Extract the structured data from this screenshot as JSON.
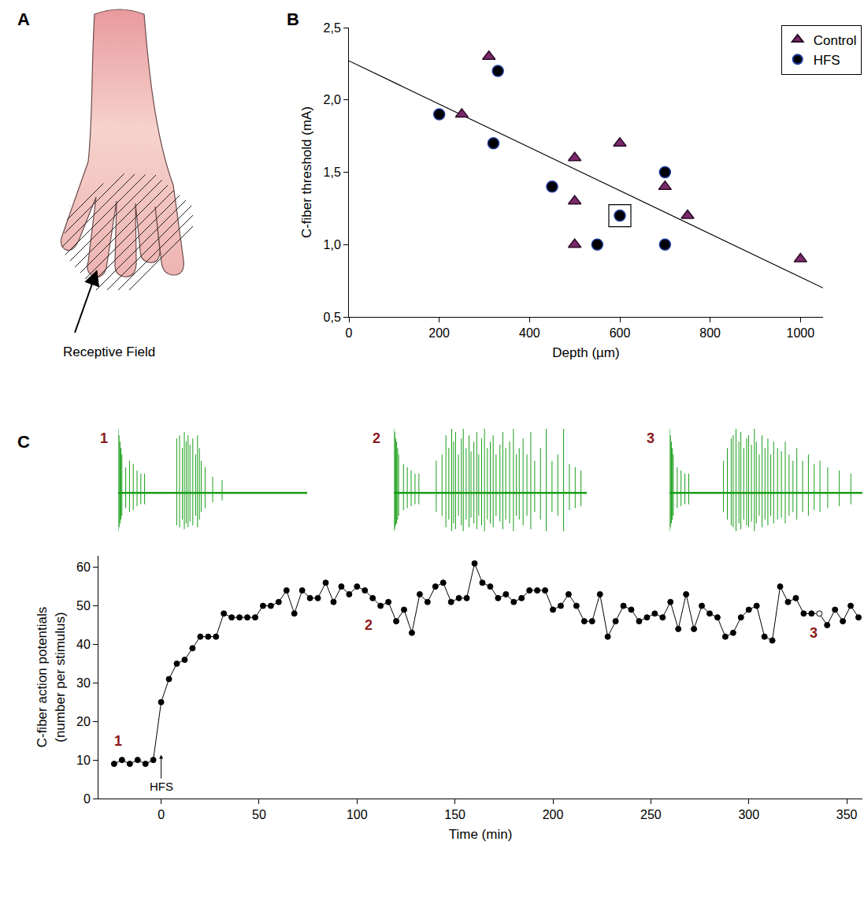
{
  "diagram": {
    "letter": "A",
    "label": "Receptive Field"
  },
  "chart_data": [
    {
      "panel": "B",
      "type": "scatter",
      "x_label": "Depth (µm)",
      "y_label": "C-fiber threshold (mA)",
      "series": [
        {
          "name": "Control",
          "marker": "triangle-up",
          "color": "#7a2a6c",
          "x": [
            250,
            310,
            500,
            500,
            500,
            600,
            700,
            750,
            1000
          ],
          "values": [
            1.9,
            2.3,
            1.6,
            1.3,
            1.0,
            1.7,
            1.4,
            1.2,
            0.9
          ]
        },
        {
          "name": "HFS",
          "marker": "circle",
          "color": "#000000",
          "x": [
            200,
            330,
            320,
            450,
            550,
            600,
            700,
            700
          ],
          "values": [
            1.9,
            2.2,
            1.7,
            1.4,
            1.0,
            1.2,
            1.5,
            1.0
          ]
        }
      ],
      "fit": {
        "x": [
          0,
          1050
        ],
        "values": [
          2.27,
          0.7
        ]
      },
      "boxed_point": {
        "x": 600,
        "value": 1.2
      },
      "xlim": [
        0,
        1050
      ],
      "xticks": [
        0,
        200,
        400,
        600,
        800,
        1000
      ],
      "ylim": [
        0.5,
        2.5
      ],
      "yticks": [
        {
          "value": 0.5,
          "label": "0,5"
        },
        {
          "value": 1.0,
          "label": "1,0"
        },
        {
          "value": 1.5,
          "label": "1,5"
        },
        {
          "value": 2.0,
          "label": "2,0"
        },
        {
          "value": 2.5,
          "label": "2,5"
        }
      ],
      "legend": "top right",
      "grid": false
    },
    {
      "panel": "C",
      "type": "spikes",
      "title": "1",
      "color": "#1a9e1a",
      "times": [
        0,
        0.5,
        1,
        1.5,
        2,
        4,
        6,
        8,
        10,
        12,
        14,
        31,
        32.5,
        34,
        35,
        36,
        37,
        38,
        39.5,
        41,
        42,
        43,
        44,
        46,
        50,
        55
      ],
      "amplitudes": [
        1,
        0.9,
        0.8,
        0.7,
        0.6,
        0.4,
        0.5,
        0.45,
        0.35,
        0.3,
        0.3,
        0.85,
        0.9,
        0.7,
        0.95,
        0.8,
        0.9,
        0.75,
        0.85,
        0.6,
        0.9,
        0.7,
        0.5,
        0.4,
        0.25,
        0.2
      ],
      "xlim": [
        0,
        100
      ],
      "ylim": [
        -0.8,
        1.05
      ],
      "tick_labels": false
    },
    {
      "panel": "C",
      "type": "spikes",
      "title": "2",
      "color": "#1a9e1a",
      "times": [
        0,
        0.5,
        1,
        1.5,
        2,
        2.5,
        5,
        7,
        9,
        11,
        13,
        22,
        25,
        27,
        28.5,
        30,
        31,
        32,
        33.5,
        35,
        36,
        37.5,
        39,
        40,
        41.5,
        43,
        44,
        45.5,
        47,
        48.5,
        50,
        51.5,
        53,
        55,
        56.5,
        58,
        60,
        62,
        63.5,
        65,
        67,
        69,
        71,
        73,
        76,
        79,
        82,
        85,
        88,
        91,
        94,
        97
      ],
      "amplitudes": [
        1,
        0.95,
        0.85,
        0.8,
        0.7,
        0.6,
        0.45,
        0.4,
        0.35,
        0.3,
        0.3,
        0.5,
        0.6,
        0.9,
        0.7,
        1.0,
        0.8,
        0.95,
        0.6,
        0.85,
        1.0,
        0.7,
        0.9,
        0.65,
        0.8,
        0.95,
        0.6,
        0.85,
        1.0,
        0.7,
        0.8,
        0.9,
        0.6,
        0.75,
        0.95,
        0.7,
        0.8,
        1.0,
        0.6,
        0.7,
        0.85,
        0.6,
        0.95,
        0.5,
        0.7,
        1.0,
        0.5,
        0.6,
        1.0,
        0.45,
        0.4,
        0.35
      ],
      "xlim": [
        0,
        100
      ],
      "ylim": [
        -0.8,
        1.05
      ],
      "tick_labels": false
    },
    {
      "panel": "C",
      "type": "spikes",
      "title": "3",
      "color": "#1a9e1a",
      "times": [
        0,
        0.5,
        1,
        1.5,
        2,
        4,
        6,
        8,
        10,
        28,
        30,
        32,
        33,
        34.5,
        36,
        37,
        38.5,
        40,
        41,
        42.5,
        44,
        45,
        46.5,
        48,
        49.5,
        51,
        52.5,
        54,
        56,
        58,
        60,
        62,
        64,
        66,
        69,
        72,
        75,
        78,
        82,
        88,
        94
      ],
      "amplitudes": [
        1,
        0.9,
        0.8,
        0.7,
        0.6,
        0.4,
        0.35,
        0.3,
        0.3,
        0.5,
        0.7,
        0.85,
        0.9,
        1.0,
        0.8,
        0.95,
        0.7,
        0.85,
        0.9,
        0.75,
        1.0,
        0.8,
        0.6,
        0.9,
        0.7,
        0.85,
        0.6,
        0.8,
        0.7,
        0.65,
        0.8,
        0.6,
        0.5,
        0.7,
        0.5,
        0.6,
        0.45,
        0.5,
        0.4,
        0.35,
        0.3
      ],
      "xlim": [
        0,
        100
      ],
      "ylim": [
        -0.8,
        1.05
      ],
      "tick_labels": false
    },
    {
      "panel": "C",
      "type": "line",
      "x_label": "Time (min)",
      "y_label": [
        "C-fiber action potentials",
        "(number per stimulus)"
      ],
      "x": [
        -24,
        -20,
        -16,
        -12,
        -8,
        -4,
        0,
        4,
        8,
        12,
        16,
        20,
        24,
        28,
        32,
        36,
        40,
        44,
        48,
        52,
        56,
        60,
        64,
        68,
        72,
        76,
        80,
        84,
        88,
        92,
        96,
        100,
        104,
        108,
        112,
        116,
        120,
        124,
        128,
        132,
        136,
        140,
        144,
        148,
        152,
        156,
        160,
        164,
        168,
        172,
        176,
        180,
        184,
        188,
        192,
        196,
        200,
        204,
        208,
        212,
        216,
        220,
        224,
        228,
        232,
        236,
        240,
        244,
        248,
        252,
        256,
        260,
        264,
        268,
        272,
        276,
        280,
        284,
        288,
        292,
        296,
        300,
        304,
        308,
        312,
        316,
        320,
        324,
        328,
        332,
        336,
        340,
        344,
        348,
        352,
        356
      ],
      "values": [
        9,
        10,
        9,
        10,
        9,
        10,
        25,
        31,
        35,
        36,
        39,
        42,
        42,
        42,
        48,
        47,
        47,
        47,
        47,
        50,
        50,
        51,
        54,
        48,
        54,
        52,
        52,
        56,
        51,
        55,
        53,
        55,
        54,
        52,
        50,
        51,
        46,
        49,
        43,
        53,
        51,
        55,
        56,
        51,
        52,
        52,
        61,
        56,
        55,
        52,
        53,
        51,
        52,
        54,
        54,
        54,
        49,
        50,
        53,
        50,
        46,
        46,
        53,
        42,
        46,
        50,
        49,
        46,
        47,
        48,
        47,
        51,
        44,
        53,
        44,
        50,
        48,
        47,
        42,
        43,
        47,
        49,
        50,
        42,
        41,
        55,
        51,
        52,
        48,
        48,
        48,
        45,
        49,
        46,
        50,
        47
      ],
      "color": "#000000",
      "marker": "circle",
      "open_x": [
        336
      ],
      "annotations": [
        {
          "text": "1",
          "x": -22,
          "y": 15
        },
        {
          "text": "2",
          "x": 106,
          "y": 45
        },
        {
          "text": "3",
          "x": 333,
          "y": 43
        }
      ],
      "event": {
        "text": "HFS",
        "x": 0
      },
      "xlim": [
        -32,
        358
      ],
      "xticks": [
        0,
        50,
        100,
        150,
        200,
        250,
        300,
        350
      ],
      "ylim": [
        0,
        63
      ],
      "yticks": [
        0,
        10,
        20,
        30,
        40,
        50,
        60
      ],
      "grid": false
    }
  ]
}
